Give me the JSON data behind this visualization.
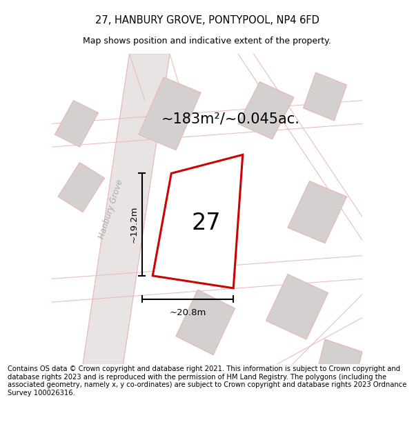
{
  "title": "27, HANBURY GROVE, PONTYPOOL, NP4 6FD",
  "subtitle": "Map shows position and indicative extent of the property.",
  "footer": "Contains OS data © Crown copyright and database right 2021. This information is subject to Crown copyright and database rights 2023 and is reproduced with the permission of HM Land Registry. The polygons (including the associated geometry, namely x, y co-ordinates) are subject to Crown copyright and database rights 2023 Ordnance Survey 100026316.",
  "area_label": "~183m²/~0.045ac.",
  "plot_number": "27",
  "dim_vertical": "~19.2m",
  "dim_horizontal": "~20.8m",
  "street_label": "Hanbury Grove",
  "map_bg": "#eeecec",
  "plot_fill": "#ffffff",
  "plot_border": "#cc0000",
  "neighbor_fill": "#d4d0d0",
  "road_color": "#e8b8b8",
  "road_fill": "#e8e4e4",
  "title_fontsize": 10.5,
  "subtitle_fontsize": 9,
  "footer_fontsize": 7.2,
  "area_fontsize": 15,
  "plot_num_fontsize": 24,
  "dim_fontsize": 9.5,
  "street_fontsize": 8.5,
  "figsize": [
    6.0,
    6.25
  ],
  "dpi": 100
}
